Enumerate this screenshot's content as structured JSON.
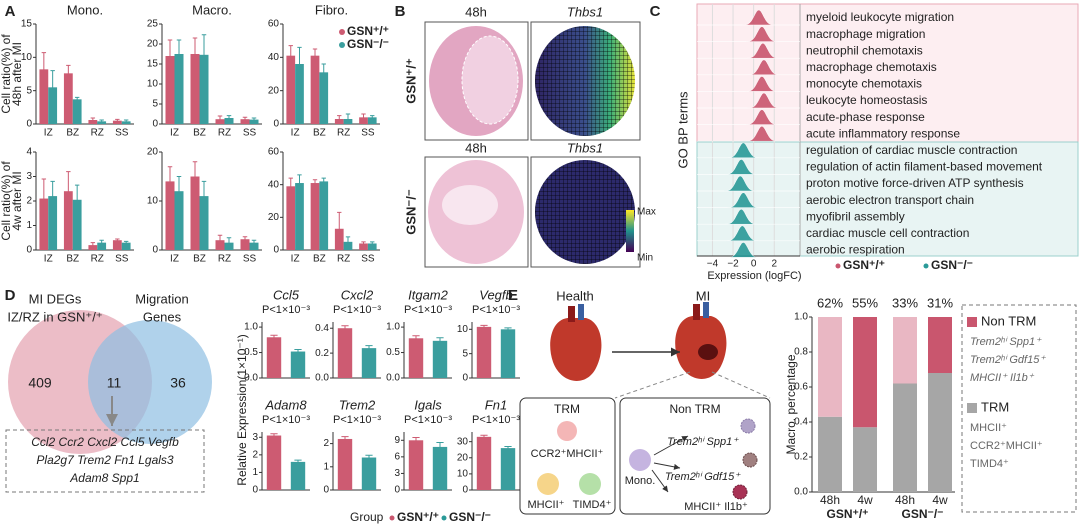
{
  "panel_labels": [
    "A",
    "B",
    "C",
    "D",
    "E"
  ],
  "chart_data": [
    {
      "type": "bar",
      "title": "Mono.",
      "ylabel": [
        "Cell ratio(%) of",
        "48h after MI"
      ],
      "categories": [
        "IZ",
        "BZ",
        "RZ",
        "SS"
      ],
      "series": [
        {
          "color": "#cd5b72",
          "values": [
            8.2,
            7.6,
            0.6,
            0.5
          ],
          "errors": [
            2.5,
            1.2,
            0.3,
            0.2
          ]
        },
        {
          "color": "#3a9e9e",
          "values": [
            5.5,
            3.7,
            0.4,
            0.4
          ],
          "errors": [
            2.5,
            0.3,
            0.2,
            0.2
          ]
        }
      ],
      "ylim": [
        0,
        15
      ],
      "yticks": [
        0,
        5,
        10,
        15
      ]
    },
    {
      "type": "bar",
      "title": "Macro.",
      "categories": [
        "IZ",
        "BZ",
        "RZ",
        "SS"
      ],
      "series": [
        {
          "color": "#cd5b72",
          "values": [
            17,
            17.5,
            1.2,
            1.2
          ],
          "errors": [
            4,
            4,
            0.8,
            0.5
          ]
        },
        {
          "color": "#3a9e9e",
          "values": [
            17.5,
            17.3,
            1.5,
            1.1
          ],
          "errors": [
            3.5,
            5,
            0.6,
            0.4
          ]
        }
      ],
      "ylim": [
        0,
        25
      ],
      "yticks": [
        0,
        5,
        10,
        15,
        20,
        25
      ]
    },
    {
      "type": "bar",
      "title": "Fibro.",
      "categories": [
        "IZ",
        "BZ",
        "RZ",
        "SS"
      ],
      "series": [
        {
          "name": "GSN⁺/⁺",
          "color": "#cd5b72",
          "values": [
            41,
            41,
            3,
            4
          ],
          "errors": [
            6,
            4,
            2,
            2
          ]
        },
        {
          "name": "GSN⁻/⁻",
          "color": "#3a9e9e",
          "values": [
            36,
            31,
            3,
            4
          ],
          "errors": [
            10,
            5,
            3,
            1
          ]
        }
      ],
      "ylim": [
        0,
        60
      ],
      "yticks": [
        0,
        20,
        40,
        60
      ]
    },
    {
      "type": "bar",
      "ylabel": [
        "Cell ratio(%) of",
        "4w after MI"
      ],
      "categories": [
        "IZ",
        "BZ",
        "RZ",
        "SS"
      ],
      "series": [
        {
          "color": "#cd5b72",
          "values": [
            2.1,
            2.4,
            0.2,
            0.4
          ],
          "errors": [
            0.8,
            0.8,
            0.1,
            0.05
          ]
        },
        {
          "color": "#3a9e9e",
          "values": [
            2.2,
            2.05,
            0.3,
            0.3
          ],
          "errors": [
            0.6,
            0.6,
            0.1,
            0.05
          ]
        }
      ],
      "ylim": [
        0,
        4
      ],
      "yticks": [
        0,
        1,
        2,
        3,
        4
      ]
    },
    {
      "type": "bar",
      "categories": [
        "IZ",
        "BZ",
        "RZ",
        "SS"
      ],
      "series": [
        {
          "color": "#cd5b72",
          "values": [
            14,
            15,
            2,
            2.2
          ],
          "errors": [
            3,
            3,
            1,
            0.5
          ]
        },
        {
          "color": "#3a9e9e",
          "values": [
            12,
            11,
            1.5,
            1.5
          ],
          "errors": [
            3,
            3,
            1,
            0.5
          ]
        }
      ],
      "ylim": [
        0,
        20
      ],
      "yticks": [
        0,
        10,
        20
      ]
    },
    {
      "type": "bar",
      "categories": [
        "IZ",
        "BZ",
        "RZ",
        "SS"
      ],
      "series": [
        {
          "color": "#cd5b72",
          "values": [
            39,
            41,
            13,
            4
          ],
          "errors": [
            5,
            2,
            10,
            1
          ]
        },
        {
          "color": "#3a9e9e",
          "values": [
            41,
            42,
            5,
            4
          ],
          "errors": [
            5,
            2,
            3,
            1
          ]
        }
      ],
      "ylim": [
        0,
        60
      ],
      "yticks": [
        0,
        20,
        40,
        60
      ]
    },
    {
      "type": "ridge",
      "ylabel": "GO BP terms",
      "xlabel": "Expression (logFC)",
      "categories": [
        "myeloid leukocyte migration",
        "macrophage migration",
        "neutrophil chemotaxis",
        "macrophage chemotaxis",
        "monocyte chemotaxis",
        "leukocyte homeostasis",
        "acute-phase response",
        "acute inflammatory response",
        "regulation of cardiac muscle contraction",
        "regulation of actin filament-based movement",
        "proton motive force-driven ATP synthesis",
        "aerobic electron transport chain",
        "myofibril assembly",
        "cardiac muscle cell contraction",
        "aerobic respiration"
      ],
      "series": [
        {
          "name": "GSN⁺/⁺",
          "color": "#c9566e",
          "values": [
            0.5,
            0.8,
            0.9,
            1.0,
            0.8,
            1.0,
            0.8,
            0.8,
            null,
            null,
            null,
            null,
            null,
            null,
            null
          ]
        },
        {
          "name": "GSN⁻/⁻",
          "color": "#2a9a98",
          "values": [
            null,
            null,
            null,
            null,
            null,
            null,
            null,
            null,
            -1.0,
            -1.2,
            -1.3,
            -1.0,
            -1.2,
            -1.1,
            -1.0
          ]
        }
      ],
      "xlim": [
        -5.5,
        4.5
      ],
      "xticks": [
        {
          "value": -4,
          "label": "−4"
        },
        {
          "value": -2,
          "label": "−2"
        },
        0,
        2
      ]
    },
    {
      "type": "bar",
      "title": "Ccl5",
      "subtitle": "P<1×10⁻³",
      "categories": [
        null,
        null
      ],
      "values": [
        0.8,
        0.52
      ],
      "errors": [
        0.04,
        0.04
      ],
      "colors": [
        "#cd5b72",
        "#3a9e9e"
      ],
      "ylim": [
        0,
        1.1
      ],
      "yticks": [
        {
          "value": 0,
          "label": "0.0"
        },
        0.5,
        {
          "value": 1,
          "label": "1.0"
        }
      ]
    },
    {
      "type": "bar",
      "title": "Cxcl2",
      "subtitle": "P<1×10⁻³",
      "categories": [
        null,
        null
      ],
      "values": [
        0.4,
        0.24
      ],
      "errors": [
        0.02,
        0.02
      ],
      "colors": [
        "#cd5b72",
        "#3a9e9e"
      ],
      "ylim": [
        0,
        0.45
      ],
      "yticks": [
        {
          "value": 0,
          "label": "0.0"
        },
        0.2,
        0.4
      ]
    },
    {
      "type": "bar",
      "title": "Itgam2",
      "subtitle": "P<1×10⁻³",
      "categories": [
        null,
        null
      ],
      "values": [
        0.78,
        0.73
      ],
      "errors": [
        0.05,
        0.06
      ],
      "colors": [
        "#cd5b72",
        "#3a9e9e"
      ],
      "ylim": [
        0,
        1.1
      ],
      "yticks": [
        {
          "value": 0,
          "label": "0.0"
        },
        0.5,
        {
          "value": 1,
          "label": "1.0"
        }
      ]
    },
    {
      "type": "bar",
      "title": "Vegfb",
      "subtitle": "P<1×10⁻³",
      "categories": [
        null,
        null
      ],
      "values": [
        10.5,
        10
      ],
      "errors": [
        0.3,
        0.3
      ],
      "colors": [
        "#cd5b72",
        "#3a9e9e"
      ],
      "ylim": [
        0,
        11.5
      ],
      "yticks": [
        0,
        5,
        10
      ]
    },
    {
      "type": "bar",
      "title": "Adam8",
      "subtitle": "P<1×10⁻³",
      "categories": [
        null,
        null
      ],
      "values": [
        3.1,
        1.6
      ],
      "errors": [
        0.1,
        0.1
      ],
      "colors": [
        "#cd5b72",
        "#3a9e9e"
      ],
      "ylim": [
        0,
        3.3
      ],
      "yticks": [
        0,
        1,
        2,
        3
      ]
    },
    {
      "type": "bar",
      "title": "Trem2",
      "subtitle": "P<1×10⁻³",
      "categories": [
        null,
        null
      ],
      "values": [
        2.2,
        1.4
      ],
      "errors": [
        0.1,
        0.1
      ],
      "colors": [
        "#cd5b72",
        "#3a9e9e"
      ],
      "ylim": [
        0,
        2.5
      ],
      "yticks": [
        0,
        1,
        2
      ]
    },
    {
      "type": "bar",
      "title": "Igals",
      "subtitle": "P<1×10⁻³",
      "categories": [
        null,
        null
      ],
      "values": [
        9.0,
        7.8
      ],
      "errors": [
        0.5,
        0.8
      ],
      "colors": [
        "#cd5b72",
        "#3a9e9e"
      ],
      "ylim": [
        0,
        10.5
      ],
      "yticks": [
        0,
        3,
        6,
        9
      ]
    },
    {
      "type": "bar",
      "title": "Fn1",
      "subtitle": "P<1×10⁻³",
      "categories": [
        null,
        null
      ],
      "values": [
        33,
        26
      ],
      "errors": [
        1,
        1
      ],
      "colors": [
        "#cd5b72",
        "#3a9e9e"
      ],
      "ylim": [
        0,
        36
      ],
      "yticks": [
        0,
        10,
        20,
        30
      ]
    },
    {
      "type": "stacked_bar",
      "ylabel": "Macro. percentage",
      "categories": [
        "48h",
        "4w",
        "48h",
        "4w"
      ],
      "groups": [
        {
          "label": "GSN⁺/⁺",
          "color": "#c9566e"
        },
        {
          "label": "GSN⁻/⁻",
          "color": "#2a9a98"
        }
      ],
      "series": [
        {
          "name": "TRM",
          "color": "#a6a6a6",
          "values": [
            0.43,
            0.37,
            0.62,
            0.68
          ],
          "subtypes": [
            "MHCII⁺",
            "CCR2⁺MHCII⁺",
            "TIMD4⁺"
          ]
        },
        {
          "name": "Non TRM",
          "color": "#c9566e",
          "colors": [
            "#e9b7c3",
            "#c9566e",
            "#e9b7c3",
            "#c9566e"
          ],
          "values": [
            0.57,
            0.63,
            0.38,
            0.32
          ],
          "subtypes": [
            "Trem2ʰⁱ Spp1⁺",
            "Trem2ʰⁱ Gdf15⁺",
            "MHCII⁺ Il1b⁺"
          ]
        }
      ],
      "top_labels": {
        "values": [
          62,
          55,
          33,
          31
        ],
        "value_labels": [
          "62%",
          "55%",
          "33%",
          "31%"
        ],
        "color": "#d9303f"
      },
      "ylim": [
        0,
        1
      ],
      "yticks": [
        {
          "value": 0,
          "label": "0.0"
        },
        0.2,
        0.4,
        0.6,
        0.8,
        {
          "value": 1,
          "label": "1.0"
        }
      ]
    }
  ],
  "panel_b": {
    "rows": [
      {
        "group": "GSN⁺/⁺",
        "color": "#c9566e",
        "time": "48h",
        "gene": "Thbs1"
      },
      {
        "group": "GSN⁻/⁻",
        "color": "#2a9a98",
        "time": "48h",
        "gene": "Thbs1"
      }
    ],
    "colorbar": {
      "max": "Max",
      "min": "Min"
    }
  },
  "panel_d": {
    "venn": {
      "left_label": [
        "MI DEGs",
        "IZ/RZ in GSN⁺/⁺"
      ],
      "right_label": [
        "Migration",
        "Genes"
      ],
      "left_only": 409,
      "both": 11,
      "right_only": 36,
      "genes": [
        "Ccl2 Ccr2 Cxcl2 Ccl5 Vegfb",
        "Pla2g7 Trem2 Fn1 Lgals3",
        "Adam8 Spp1"
      ]
    },
    "ylabel": "Relative Expression(1×10⁻¹)",
    "legend": {
      "title": "Group",
      "items": [
        {
          "name": "GSN⁺/⁺",
          "color": "#c9566e"
        },
        {
          "name": "GSN⁻/⁻",
          "color": "#2a9a98"
        }
      ]
    }
  },
  "panel_e": {
    "health": "Health",
    "mi": "MI",
    "trm": {
      "title": "TRM",
      "cells": [
        "CCR2⁺MHCII⁺",
        "MHCII⁺",
        "TIMD4⁺"
      ]
    },
    "non_trm": {
      "title": "Non TRM",
      "source": "Mono.",
      "cells": [
        "Trem2ʰⁱ Spp1⁺",
        "Trem2ʰⁱ Gdf15⁺",
        "MHCII⁺ Il1b⁺"
      ]
    }
  }
}
